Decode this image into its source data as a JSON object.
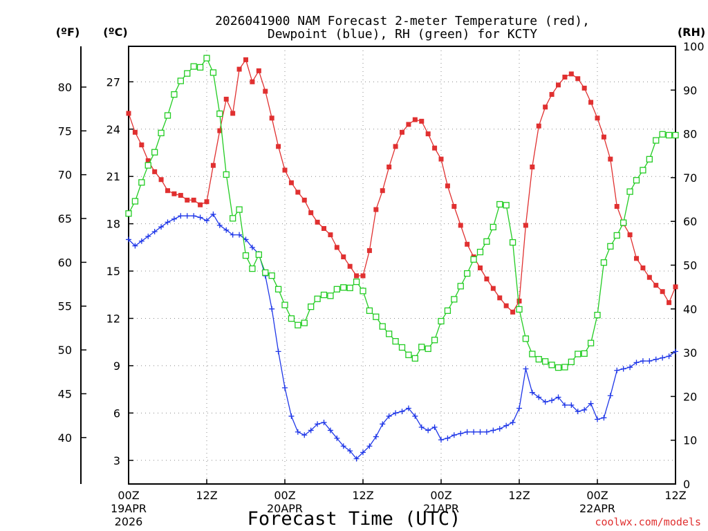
{
  "chart_data": {
    "type": "line",
    "title_line1": "2026041900 NAM Forecast 2-meter Temperature (red),",
    "title_line2": "Dewpoint (blue), RH (green) for KCTY",
    "unit_f": "(ºF)",
    "unit_c": "(ºC)",
    "unit_rh": "(RH)",
    "xlabel": "Forecast Time (UTC)",
    "credit": "coolwx.com/models",
    "x_range_hours": [
      0,
      84
    ],
    "y_left_celsius_range": [
      1.5,
      29.25
    ],
    "y_right_rh_range": [
      0,
      100
    ],
    "f_ticks": [
      40,
      45,
      50,
      55,
      60,
      65,
      70,
      75,
      80
    ],
    "c_ticks": [
      3,
      6,
      9,
      12,
      15,
      18,
      21,
      24,
      27
    ],
    "rh_ticks": [
      0,
      10,
      20,
      30,
      40,
      50,
      60,
      70,
      80,
      90,
      100
    ],
    "x_ticks": [
      {
        "hour": 0,
        "label": "00Z",
        "date": "19APR",
        "year": "2026"
      },
      {
        "hour": 12,
        "label": "12Z",
        "date": "",
        "year": ""
      },
      {
        "hour": 24,
        "label": "00Z",
        "date": "20APR",
        "year": ""
      },
      {
        "hour": 36,
        "label": "12Z",
        "date": "",
        "year": ""
      },
      {
        "hour": 48,
        "label": "00Z",
        "date": "21APR",
        "year": ""
      },
      {
        "hour": 60,
        "label": "12Z",
        "date": "",
        "year": ""
      },
      {
        "hour": 72,
        "label": "00Z",
        "date": "22APR",
        "year": ""
      },
      {
        "hour": 84,
        "label": "12Z",
        "date": "",
        "year": ""
      }
    ],
    "series": [
      {
        "name": "Temperature",
        "color": "#e03030",
        "marker": "filled-square",
        "axis": "celsius",
        "x": [
          0,
          1,
          2,
          3,
          4,
          5,
          6,
          7,
          8,
          9,
          10,
          11,
          12,
          13,
          14,
          15,
          16,
          17,
          18,
          19,
          20,
          21,
          22,
          23,
          24,
          25,
          26,
          27,
          28,
          29,
          30,
          31,
          32,
          33,
          34,
          35,
          36,
          37,
          38,
          39,
          40,
          41,
          42,
          43,
          44,
          45,
          46,
          47,
          48,
          49,
          50,
          51,
          52,
          53,
          54,
          55,
          56,
          57,
          58,
          59,
          60,
          61,
          62,
          63,
          64,
          65,
          66,
          67,
          68,
          69,
          70,
          71,
          72,
          73,
          74,
          75,
          76,
          77,
          78,
          79,
          80,
          81,
          82,
          83,
          84
        ],
        "values": [
          25.0,
          23.8,
          23.0,
          22.0,
          21.3,
          20.8,
          20.1,
          19.9,
          19.8,
          19.5,
          19.5,
          19.2,
          19.4,
          21.7,
          23.9,
          25.9,
          25.0,
          27.8,
          28.4,
          27.0,
          27.7,
          26.4,
          24.7,
          22.9,
          21.4,
          20.6,
          20.0,
          19.5,
          18.7,
          18.1,
          17.7,
          17.3,
          16.5,
          15.9,
          15.3,
          14.7,
          14.7,
          16.3,
          18.9,
          20.1,
          21.6,
          22.9,
          23.8,
          24.3,
          24.6,
          24.5,
          23.7,
          22.8,
          22.1,
          20.4,
          19.1,
          17.9,
          16.7,
          15.9,
          15.2,
          14.5,
          13.9,
          13.3,
          12.8,
          12.4,
          13.1,
          17.9,
          21.6,
          24.2,
          25.4,
          26.2,
          26.8,
          27.3,
          27.5,
          27.2,
          26.6,
          25.7,
          24.7,
          23.5,
          22.1,
          19.1,
          18.0,
          17.3,
          15.8,
          15.2,
          14.6,
          14.1,
          13.7,
          13.0,
          14.0
        ]
      },
      {
        "name": "Dewpoint",
        "color": "#1e36e8",
        "marker": "plus",
        "axis": "celsius",
        "x": [
          0,
          1,
          2,
          3,
          4,
          5,
          6,
          7,
          8,
          9,
          10,
          11,
          12,
          13,
          14,
          15,
          16,
          17,
          18,
          19,
          20,
          21,
          22,
          23,
          24,
          25,
          26,
          27,
          28,
          29,
          30,
          31,
          32,
          33,
          34,
          35,
          36,
          37,
          38,
          39,
          40,
          41,
          42,
          43,
          44,
          45,
          46,
          47,
          48,
          49,
          50,
          51,
          52,
          53,
          54,
          55,
          56,
          57,
          58,
          59,
          60,
          61,
          62,
          63,
          64,
          65,
          66,
          67,
          68,
          69,
          70,
          71,
          72,
          73,
          74,
          75,
          76,
          77,
          78,
          79,
          80,
          81,
          82,
          83,
          84
        ],
        "values": [
          17.0,
          16.6,
          16.9,
          17.2,
          17.5,
          17.8,
          18.1,
          18.3,
          18.5,
          18.5,
          18.5,
          18.4,
          18.2,
          18.6,
          17.9,
          17.6,
          17.3,
          17.3,
          17.0,
          16.5,
          16.1,
          14.7,
          12.6,
          9.9,
          7.6,
          5.8,
          4.8,
          4.6,
          4.9,
          5.3,
          5.4,
          4.9,
          4.4,
          3.9,
          3.6,
          3.1,
          3.5,
          3.9,
          4.5,
          5.3,
          5.8,
          6.0,
          6.1,
          6.3,
          5.8,
          5.1,
          4.9,
          5.1,
          4.3,
          4.4,
          4.6,
          4.7,
          4.8,
          4.8,
          4.8,
          4.8,
          4.9,
          5.0,
          5.2,
          5.4,
          6.3,
          8.8,
          7.3,
          7.0,
          6.7,
          6.8,
          7.0,
          6.5,
          6.5,
          6.1,
          6.2,
          6.6,
          5.6,
          5.7,
          7.1,
          8.7,
          8.8,
          8.9,
          9.2,
          9.3,
          9.3,
          9.4,
          9.5,
          9.6,
          9.9
        ]
      },
      {
        "name": "RH",
        "color": "#22cc22",
        "marker": "open-square",
        "axis": "rh",
        "x": [
          0,
          1,
          2,
          3,
          4,
          5,
          6,
          7,
          8,
          9,
          10,
          11,
          12,
          13,
          14,
          15,
          16,
          17,
          18,
          19,
          20,
          21,
          22,
          23,
          24,
          25,
          26,
          27,
          28,
          29,
          30,
          31,
          32,
          33,
          34,
          35,
          36,
          37,
          38,
          39,
          40,
          41,
          42,
          43,
          44,
          45,
          46,
          47,
          48,
          49,
          50,
          51,
          52,
          53,
          54,
          55,
          56,
          57,
          58,
          59,
          60,
          61,
          62,
          63,
          64,
          65,
          66,
          67,
          68,
          69,
          70,
          71,
          72,
          73,
          74,
          75,
          76,
          77,
          78,
          79,
          80,
          81,
          82,
          83,
          84
        ],
        "values": [
          61.8,
          64.6,
          68.9,
          72.8,
          75.8,
          80.2,
          84.2,
          89.0,
          92.1,
          93.8,
          95.4,
          95.2,
          97.3,
          94.0,
          84.6,
          70.7,
          60.7,
          62.7,
          52.2,
          49.2,
          52.4,
          48.3,
          47.6,
          44.5,
          40.9,
          37.8,
          36.3,
          36.8,
          40.5,
          42.3,
          43.2,
          43.0,
          44.5,
          44.9,
          44.8,
          46.2,
          44.1,
          39.6,
          38.2,
          36.0,
          34.3,
          32.6,
          31.2,
          29.5,
          28.7,
          31.3,
          30.9,
          32.9,
          37.2,
          39.6,
          42.2,
          45.2,
          48.1,
          51.3,
          53.0,
          55.4,
          58.7,
          63.9,
          63.7,
          55.2,
          39.9,
          33.2,
          29.7,
          28.5,
          28.0,
          27.2,
          26.6,
          26.7,
          27.9,
          29.7,
          29.8,
          32.2,
          38.6,
          50.6,
          54.3,
          56.8,
          59.7,
          66.8,
          69.4,
          71.7,
          74.2,
          78.5,
          79.9,
          79.7,
          79.7
        ]
      }
    ]
  }
}
